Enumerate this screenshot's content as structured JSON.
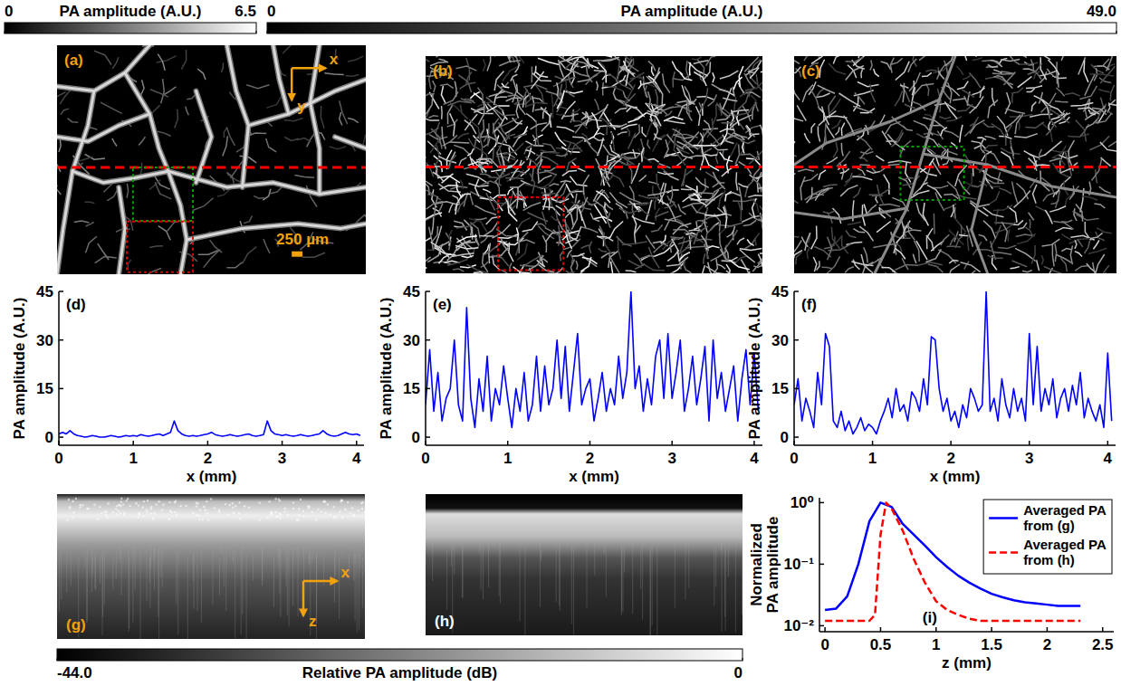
{
  "colorbars": [
    {
      "label": "PA amplitude (A.U.)",
      "range": [
        0,
        6.5
      ],
      "ticks": [
        0,
        6.5
      ]
    },
    {
      "label": "PA amplitude (A.U.)",
      "range": [
        0,
        49
      ],
      "ticks": [
        0,
        {
          "value": 49,
          "label": "49.0"
        }
      ]
    },
    {
      "label": "Relative PA amplitude (dB)",
      "range": [
        -44,
        0
      ],
      "ticks": [
        {
          "value": -44,
          "label": "-44.0"
        },
        0
      ]
    }
  ],
  "images": [
    {
      "panel": "(a)",
      "axis_labels": [
        "x",
        "y"
      ],
      "scale_bar": "250 µm"
    },
    {
      "panel": "(b)"
    },
    {
      "panel": "(c)"
    },
    {
      "panel": "(g)",
      "axis_labels": [
        "x",
        "z"
      ]
    },
    {
      "panel": "(h)"
    }
  ],
  "chart_data": [
    {
      "type": "line",
      "panel": "(d)",
      "x_label": "x (mm)",
      "y_label": "PA amplitude (A.U.)",
      "xlim": [
        0,
        4.1
      ],
      "xticks": [
        0,
        1,
        2,
        3,
        4
      ],
      "ylim": [
        -2.5,
        45
      ],
      "yticks": [
        0,
        15,
        30,
        45
      ],
      "x": [
        0,
        0.05,
        0.1,
        0.15,
        0.2,
        0.25,
        0.3,
        0.35,
        0.4,
        0.45,
        0.5,
        0.55,
        0.6,
        0.65,
        0.7,
        0.75,
        0.8,
        0.85,
        0.9,
        0.95,
        1,
        1.05,
        1.1,
        1.15,
        1.2,
        1.25,
        1.3,
        1.35,
        1.4,
        1.45,
        1.5,
        1.55,
        1.6,
        1.65,
        1.7,
        1.75,
        1.8,
        1.85,
        1.9,
        1.95,
        2,
        2.05,
        2.1,
        2.15,
        2.2,
        2.25,
        2.3,
        2.35,
        2.4,
        2.45,
        2.5,
        2.55,
        2.6,
        2.65,
        2.7,
        2.75,
        2.8,
        2.85,
        2.9,
        2.95,
        3,
        3.05,
        3.1,
        3.15,
        3.2,
        3.25,
        3.3,
        3.35,
        3.4,
        3.45,
        3.5,
        3.55,
        3.6,
        3.65,
        3.7,
        3.75,
        3.8,
        3.85,
        3.9,
        3.95,
        4,
        4.05
      ],
      "series": [
        {
          "color": "#0000ff",
          "values": [
            1,
            1.5,
            1,
            2,
            1,
            0.5,
            0.3,
            0,
            0.2,
            0.5,
            0.3,
            0,
            0,
            0.2,
            0.5,
            0.3,
            0,
            0.2,
            0.5,
            0.3,
            0.5,
            0.3,
            0.8,
            0.5,
            0.3,
            0.5,
            0.8,
            1,
            0.5,
            1,
            1.5,
            5,
            2,
            1,
            0.5,
            0.3,
            0.5,
            0.3,
            0.5,
            0.8,
            1,
            1.5,
            0.8,
            0.5,
            0.3,
            0.5,
            0.8,
            0.5,
            0.3,
            0.5,
            0.8,
            1,
            0.5,
            0.3,
            0.5,
            0.8,
            5,
            2,
            1,
            0.8,
            0.5,
            0.8,
            0.5,
            0.3,
            0.5,
            0.8,
            0.5,
            0.3,
            0.5,
            0.8,
            1,
            2,
            1,
            0.5,
            0.3,
            0.5,
            1,
            1.5,
            1,
            0.8,
            1,
            0.5
          ]
        }
      ]
    },
    {
      "type": "line",
      "panel": "(e)",
      "x_label": "x (mm)",
      "y_label": "PA amplitude (A.U.)",
      "xlim": [
        0,
        4.1
      ],
      "xticks": [
        0,
        1,
        2,
        3,
        4
      ],
      "ylim": [
        -2.5,
        45
      ],
      "yticks": [
        0,
        15,
        30,
        45
      ],
      "x": [
        0,
        0.05,
        0.1,
        0.15,
        0.2,
        0.25,
        0.3,
        0.35,
        0.4,
        0.45,
        0.5,
        0.55,
        0.6,
        0.65,
        0.7,
        0.75,
        0.8,
        0.85,
        0.9,
        0.95,
        1,
        1.05,
        1.1,
        1.15,
        1.2,
        1.25,
        1.3,
        1.35,
        1.4,
        1.45,
        1.5,
        1.55,
        1.6,
        1.65,
        1.7,
        1.75,
        1.8,
        1.85,
        1.9,
        1.95,
        2,
        2.05,
        2.1,
        2.15,
        2.2,
        2.25,
        2.3,
        2.35,
        2.4,
        2.45,
        2.5,
        2.55,
        2.6,
        2.65,
        2.7,
        2.75,
        2.8,
        2.85,
        2.9,
        2.95,
        3,
        3.05,
        3.1,
        3.15,
        3.2,
        3.25,
        3.3,
        3.35,
        3.4,
        3.45,
        3.5,
        3.55,
        3.6,
        3.65,
        3.7,
        3.75,
        3.8,
        3.85,
        3.9,
        3.95,
        4,
        4.05
      ],
      "series": [
        {
          "color": "#0000ff",
          "values": [
            10,
            27,
            8,
            20,
            5,
            12,
            15,
            30,
            10,
            5,
            40,
            12,
            3,
            18,
            8,
            25,
            5,
            15,
            10,
            22,
            12,
            3,
            15,
            8,
            20,
            5,
            10,
            25,
            8,
            22,
            10,
            15,
            30,
            12,
            28,
            8,
            20,
            32,
            10,
            15,
            18,
            5,
            12,
            20,
            8,
            15,
            10,
            25,
            12,
            20,
            45,
            15,
            22,
            8,
            18,
            10,
            25,
            30,
            12,
            32,
            12,
            20,
            30,
            8,
            15,
            25,
            10,
            18,
            28,
            5,
            30,
            12,
            20,
            8,
            15,
            22,
            5,
            18,
            27,
            10,
            26,
            8
          ]
        }
      ]
    },
    {
      "type": "line",
      "panel": "(f)",
      "x_label": "x (mm)",
      "y_label": "PA amplitude (A.U.)",
      "xlim": [
        0,
        4.1
      ],
      "xticks": [
        0,
        1,
        2,
        3,
        4
      ],
      "ylim": [
        -2.5,
        45
      ],
      "yticks": [
        0,
        15,
        30,
        45
      ],
      "x": [
        0,
        0.05,
        0.1,
        0.15,
        0.2,
        0.25,
        0.3,
        0.35,
        0.4,
        0.45,
        0.5,
        0.55,
        0.6,
        0.65,
        0.7,
        0.75,
        0.8,
        0.85,
        0.9,
        0.95,
        1,
        1.05,
        1.1,
        1.15,
        1.2,
        1.25,
        1.3,
        1.35,
        1.4,
        1.45,
        1.5,
        1.55,
        1.6,
        1.65,
        1.7,
        1.75,
        1.8,
        1.85,
        1.9,
        1.95,
        2,
        2.05,
        2.1,
        2.15,
        2.2,
        2.25,
        2.3,
        2.35,
        2.4,
        2.45,
        2.5,
        2.55,
        2.6,
        2.65,
        2.7,
        2.75,
        2.8,
        2.85,
        2.9,
        2.95,
        3,
        3.05,
        3.1,
        3.15,
        3.2,
        3.25,
        3.3,
        3.35,
        3.4,
        3.45,
        3.5,
        3.55,
        3.6,
        3.65,
        3.7,
        3.75,
        3.8,
        3.85,
        3.9,
        3.95,
        4,
        4.05
      ],
      "series": [
        {
          "color": "#0000ff",
          "values": [
            10,
            18,
            5,
            12,
            8,
            3,
            20,
            10,
            32,
            28,
            5,
            3,
            8,
            2,
            5,
            1,
            3,
            6,
            2,
            4,
            3,
            1,
            5,
            8,
            12,
            6,
            15,
            8,
            10,
            5,
            14,
            12,
            8,
            18,
            10,
            31,
            30,
            15,
            8,
            12,
            5,
            8,
            3,
            10,
            6,
            15,
            12,
            8,
            10,
            45,
            8,
            12,
            5,
            18,
            10,
            6,
            15,
            8,
            12,
            5,
            32,
            10,
            28,
            8,
            15,
            10,
            18,
            6,
            12,
            15,
            8,
            16,
            10,
            20,
            6,
            12,
            8,
            5,
            10,
            3,
            26,
            5
          ]
        }
      ]
    },
    {
      "type": "line",
      "panel": "(i)",
      "x_label": "z (mm)",
      "y_label": "Normalized PA amplitude",
      "log": "y",
      "xlim": [
        -0.05,
        2.6
      ],
      "xticks": [
        0,
        0.5,
        1,
        1.5,
        2,
        2.5
      ],
      "ylim": [
        0.008,
        1.2
      ],
      "yticks": [
        {
          "value": 0.01,
          "label": "10⁻²"
        },
        {
          "value": 0.1,
          "label": "10⁻¹"
        },
        {
          "value": 1,
          "label": "10⁰"
        }
      ],
      "legend": "upper right",
      "series": [
        {
          "name": "Averaged PA from (g)",
          "color": "#0000ff",
          "line_style": "solid",
          "x": [
            0,
            0.1,
            0.2,
            0.3,
            0.4,
            0.5,
            0.6,
            0.7,
            0.8,
            0.9,
            1,
            1.1,
            1.2,
            1.3,
            1.4,
            1.5,
            1.6,
            1.7,
            1.8,
            1.9,
            2,
            2.1,
            2.2,
            2.3
          ],
          "values": [
            0.018,
            0.019,
            0.03,
            0.1,
            0.5,
            1,
            0.85,
            0.45,
            0.3,
            0.2,
            0.13,
            0.09,
            0.065,
            0.05,
            0.04,
            0.033,
            0.029,
            0.026,
            0.024,
            0.023,
            0.022,
            0.021,
            0.021,
            0.021
          ]
        },
        {
          "name": "Averaged PA from (h)",
          "color": "#ff0000",
          "line_style": "dashed",
          "x": [
            0,
            0.1,
            0.2,
            0.3,
            0.4,
            0.45,
            0.5,
            0.55,
            0.6,
            0.7,
            0.8,
            0.9,
            1,
            1.1,
            1.2,
            1.3,
            1.4,
            1.6,
            1.8,
            2,
            2.3
          ],
          "values": [
            0.012,
            0.012,
            0.012,
            0.012,
            0.012,
            0.015,
            0.3,
            1,
            0.8,
            0.35,
            0.12,
            0.05,
            0.025,
            0.018,
            0.015,
            0.013,
            0.012,
            0.012,
            0.012,
            0.012,
            0.012
          ]
        }
      ]
    }
  ]
}
